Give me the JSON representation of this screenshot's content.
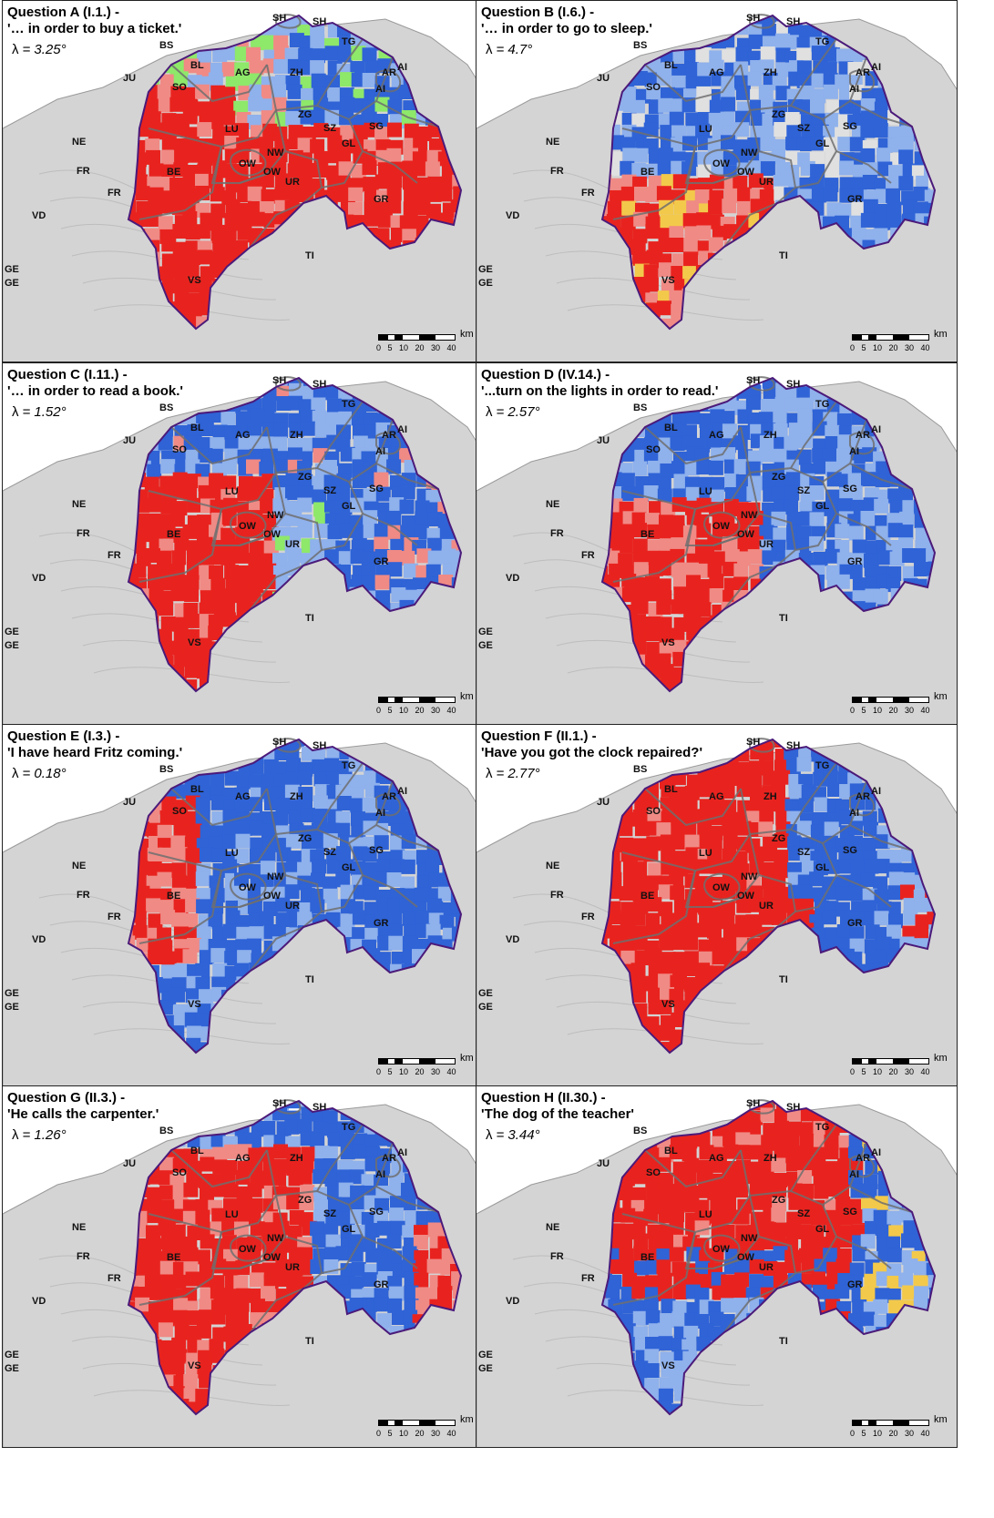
{
  "panels": [
    {
      "id": "A",
      "title": "Question A (I.1.) -",
      "subtitle": "'… in order to buy a ticket.'",
      "lambda": "= 3.25°",
      "pattern": "A"
    },
    {
      "id": "B",
      "title": "Question B (I.6.) -",
      "subtitle": "'… in order to go to sleep.'",
      "lambda": "= 4.7°",
      "pattern": "B"
    },
    {
      "id": "C",
      "title": "Question C (I.11.) -",
      "subtitle": "'… in order to read a book.'",
      "lambda": "= 1.52°",
      "pattern": "C"
    },
    {
      "id": "D",
      "title": "Question D (IV.14.) -",
      "subtitle": "'...turn on the lights in order to read.'",
      "lambda": "= 2.57°",
      "pattern": "D"
    },
    {
      "id": "E",
      "title": "Question E (I.3.) -",
      "subtitle": "'I have heard Fritz coming.'",
      "lambda": "= 0.18°",
      "pattern": "E"
    },
    {
      "id": "F",
      "title": "Question F (II.1.) -",
      "subtitle": "'Have you got the clock repaired?'",
      "lambda": "= 2.77°",
      "pattern": "F"
    },
    {
      "id": "G",
      "title": "Question G (II.3.) -",
      "subtitle": "'He calls the carpenter.'",
      "lambda": "= 1.26°",
      "pattern": "G"
    },
    {
      "id": "H",
      "title": "Question H (II.30.) -",
      "subtitle": "'The dog of the teacher'",
      "lambda": "= 3.44°",
      "pattern": "H"
    }
  ],
  "lambda_symbol": "λ",
  "canton_labels": [
    "SH",
    "SH",
    "BS",
    "TG",
    "BL",
    "AR",
    "AI",
    "JU",
    "AG",
    "ZH",
    "AI",
    "SO",
    "ZG",
    "SG",
    "LU",
    "SZ",
    "GL",
    "NE",
    "NW",
    "FR",
    "OW",
    "OW",
    "BE",
    "FR",
    "UR",
    "GR",
    "VD",
    "TI",
    "GE",
    "GE",
    "VS"
  ],
  "scale": {
    "unit": "km",
    "ticks": "0 5 10 20 30 40"
  },
  "colors": {
    "red": "#e8231f",
    "blue": "#2f63d6",
    "light_blue": "#8fb1ec",
    "pink": "#f08a85",
    "green": "#8ee86a",
    "yellow": "#f3c94b",
    "grey_land": "#d4d4d4",
    "border": "#4b1a7a"
  }
}
